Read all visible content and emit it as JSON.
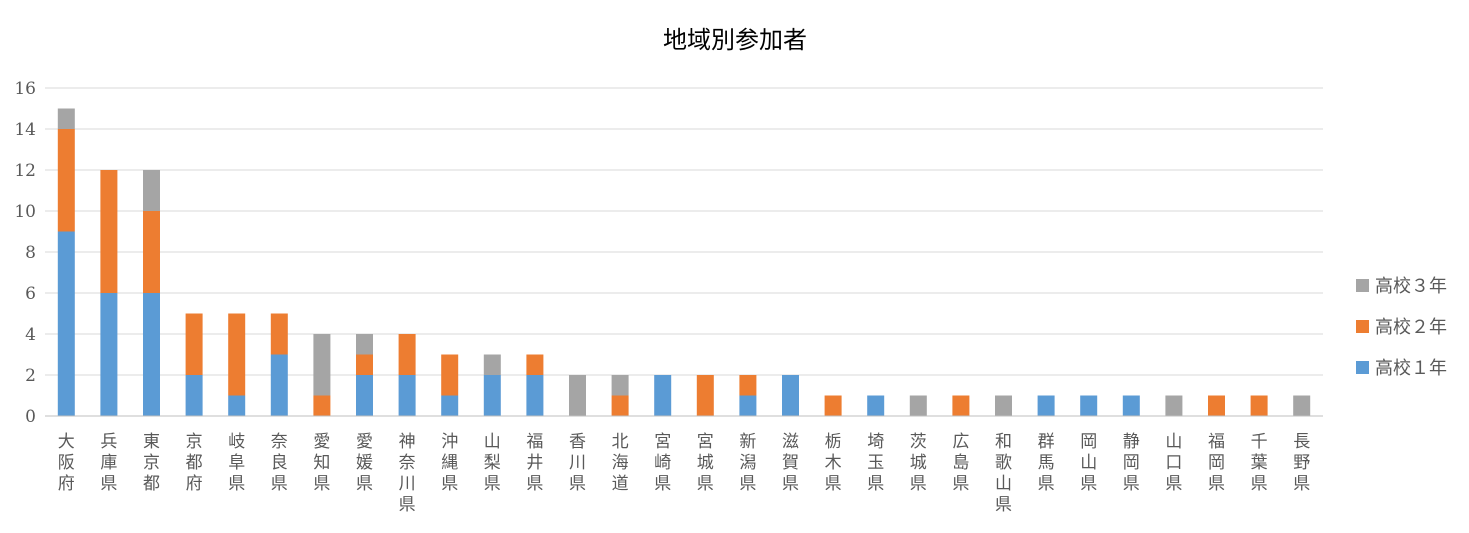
{
  "chart_data": {
    "type": "bar",
    "stacked": true,
    "title": "地域別参加者",
    "xlabel": "",
    "ylabel": "",
    "ylim": [
      0,
      16
    ],
    "yticks": [
      0,
      2,
      4,
      6,
      8,
      10,
      12,
      14,
      16
    ],
    "grid": true,
    "legend_position": "right",
    "categories": [
      "大阪府",
      "兵庫県",
      "東京都",
      "京都府",
      "岐阜県",
      "奈良県",
      "愛知県",
      "愛媛県",
      "神奈川県",
      "沖縄県",
      "山梨県",
      "福井県",
      "香川県",
      "北海道",
      "宮崎県",
      "宮城県",
      "新潟県",
      "滋賀県",
      "栃木県",
      "埼玉県",
      "茨城県",
      "広島県",
      "和歌山県",
      "群馬県",
      "岡山県",
      "静岡県",
      "山口県",
      "福岡県",
      "千葉県",
      "長野県"
    ],
    "series": [
      {
        "name": "高校１年",
        "color": "#5b9bd5",
        "values": [
          9,
          6,
          6,
          2,
          1,
          3,
          0,
          2,
          2,
          1,
          2,
          2,
          0,
          0,
          2,
          0,
          1,
          2,
          0,
          1,
          0,
          0,
          0,
          1,
          1,
          1,
          0,
          0,
          0,
          0
        ]
      },
      {
        "name": "高校２年",
        "color": "#ed7d31",
        "values": [
          5,
          6,
          4,
          3,
          4,
          2,
          1,
          1,
          2,
          2,
          0,
          1,
          0,
          1,
          0,
          2,
          1,
          0,
          1,
          0,
          0,
          1,
          0,
          0,
          0,
          0,
          0,
          1,
          1,
          0
        ]
      },
      {
        "name": "高校３年",
        "color": "#a5a5a5",
        "values": [
          1,
          0,
          2,
          0,
          0,
          0,
          3,
          1,
          0,
          0,
          1,
          0,
          2,
          1,
          0,
          0,
          0,
          0,
          0,
          0,
          1,
          0,
          1,
          0,
          0,
          0,
          1,
          0,
          0,
          1
        ]
      }
    ],
    "legend_order": [
      "高校３年",
      "高校２年",
      "高校１年"
    ]
  }
}
